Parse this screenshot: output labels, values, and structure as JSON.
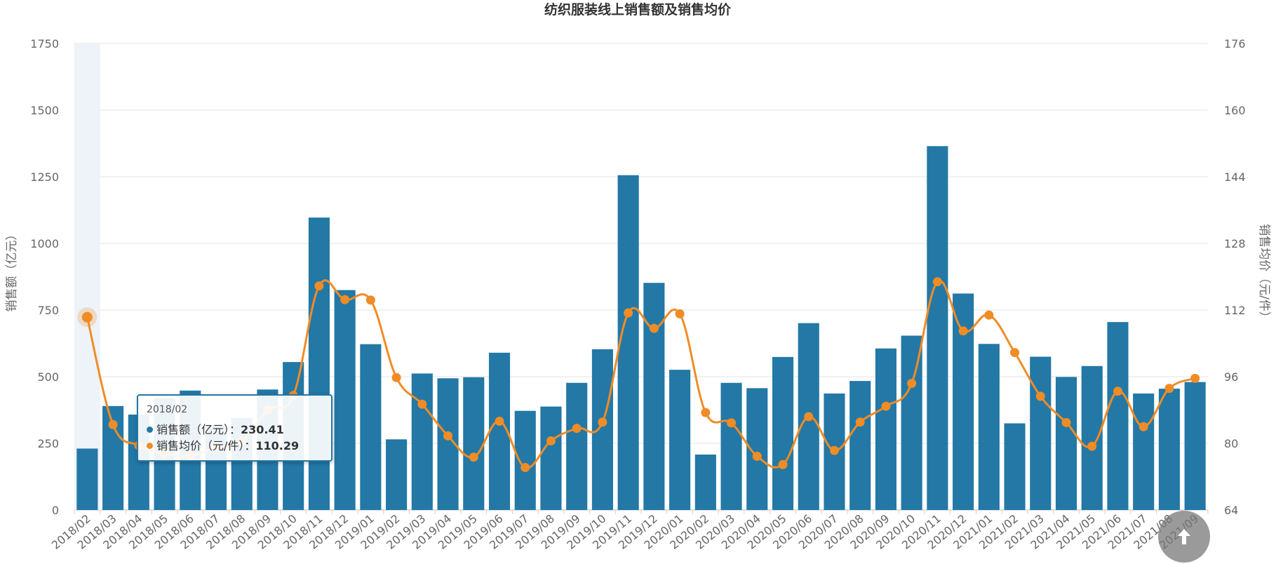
{
  "chart_data": {
    "type": "bar+line",
    "title": "纺织服装线上销售额及销售均价",
    "categories": [
      "2018/02",
      "2018/03",
      "2018/04",
      "2018/05",
      "2018/06",
      "2018/07",
      "2018/08",
      "2018/09",
      "2018/10",
      "2018/11",
      "2018/12",
      "2019/01",
      "2019/02",
      "2019/03",
      "2019/04",
      "2019/05",
      "2019/06",
      "2019/07",
      "2019/08",
      "2019/09",
      "2019/10",
      "2019/11",
      "2019/12",
      "2020/01",
      "2020/02",
      "2020/03",
      "2020/04",
      "2020/05",
      "2020/06",
      "2020/07",
      "2020/08",
      "2020/09",
      "2020/10",
      "2020/11",
      "2020/12",
      "2021/01",
      "2021/02",
      "2021/03",
      "2021/04",
      "2021/05",
      "2021/06",
      "2021/07",
      "2021/08",
      "2021/09"
    ],
    "series": [
      {
        "name": "销售额（亿元）",
        "type": "bar",
        "axis": "left",
        "color": "#2378a6",
        "values": [
          230.41,
          390,
          358,
          420,
          448,
          320,
          345,
          452,
          555,
          1097,
          825,
          622,
          265,
          512,
          494,
          498,
          590,
          372,
          388,
          477,
          603,
          1256,
          852,
          526,
          208,
          477,
          457,
          574,
          701,
          437,
          484,
          606,
          654,
          1365,
          812,
          623,
          325,
          575,
          499,
          540,
          705,
          437,
          455,
          480
        ]
      },
      {
        "name": "销售均价（元/件）",
        "type": "line",
        "axis": "right",
        "color": "#f08c26",
        "values": [
          110.29,
          84.5,
          79.5,
          77.5,
          77.0,
          79.0,
          80.5,
          88.0,
          91.5,
          117.8,
          114.5,
          114.4,
          95.8,
          89.4,
          81.8,
          76.7,
          85.3,
          74.2,
          80.6,
          83.6,
          85.1,
          111.3,
          107.6,
          111.1,
          87.4,
          84.9,
          76.9,
          74.9,
          86.4,
          78.3,
          85.1,
          88.9,
          94.4,
          118.8,
          107.0,
          110.8,
          101.8,
          91.3,
          85.0,
          79.3,
          92.5,
          84.0,
          93.2,
          95.6
        ]
      }
    ],
    "ylabel_left": "销售额（亿元）",
    "ylabel_right": "销售均价（元/件）",
    "ylim_left": [
      0,
      1750
    ],
    "ylim_right": [
      64,
      176
    ],
    "yticks_left": [
      "0",
      "250",
      "500",
      "750",
      "1000",
      "1250",
      "1500",
      "1750"
    ],
    "yticks_right": [
      "64",
      "80",
      "96",
      "112",
      "128",
      "144",
      "160",
      "176"
    ],
    "grid": true,
    "highlighted_index": 0
  },
  "tooltip": {
    "title": "2018/02",
    "row1_label": "销售额（亿元）：",
    "row1_value": "230.41",
    "row2_label": "销售均价（元/件）：",
    "row2_value": "110.29"
  },
  "scroll_top": {
    "icon": "arrow-up-icon"
  }
}
